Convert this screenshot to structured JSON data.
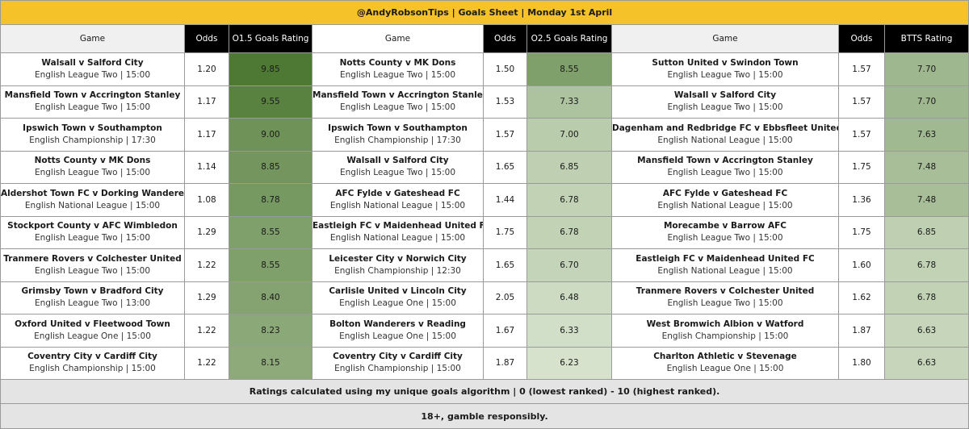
{
  "header": {
    "title": "@AndyRobsonTips | Goals Sheet | Monday 1st April"
  },
  "sections": [
    {
      "columns": [
        "Game",
        "Odds",
        "O1.5 Goals Rating"
      ],
      "rows": [
        {
          "match": "Walsall v Salford City",
          "league": "English League Two | 15:00",
          "odds": "1.20",
          "rating": "9.85"
        },
        {
          "match": "Mansfield Town v Accrington Stanley",
          "league": "English League Two | 15:00",
          "odds": "1.17",
          "rating": "9.55"
        },
        {
          "match": "Ipswich Town v Southampton",
          "league": "English Championship | 17:30",
          "odds": "1.17",
          "rating": "9.00"
        },
        {
          "match": "Notts County v MK Dons",
          "league": "English League Two | 15:00",
          "odds": "1.14",
          "rating": "8.85"
        },
        {
          "match": "Aldershot Town FC v Dorking Wanderers",
          "league": "English National League | 15:00",
          "odds": "1.08",
          "rating": "8.78"
        },
        {
          "match": "Stockport County v AFC Wimbledon",
          "league": "English League Two | 15:00",
          "odds": "1.29",
          "rating": "8.55"
        },
        {
          "match": "Tranmere Rovers v Colchester United",
          "league": "English League Two | 15:00",
          "odds": "1.22",
          "rating": "8.55"
        },
        {
          "match": "Grimsby Town v Bradford City",
          "league": "English League Two | 13:00",
          "odds": "1.29",
          "rating": "8.40"
        },
        {
          "match": "Oxford United v Fleetwood Town",
          "league": "English League One | 15:00",
          "odds": "1.22",
          "rating": "8.23"
        },
        {
          "match": "Coventry City v Cardiff City",
          "league": "English Championship | 15:00",
          "odds": "1.22",
          "rating": "8.15"
        }
      ]
    },
    {
      "columns": [
        "Game",
        "Odds",
        "O2.5 Goals Rating"
      ],
      "rows": [
        {
          "match": "Notts County v MK Dons",
          "league": "English League Two | 15:00",
          "odds": "1.50",
          "rating": "8.55"
        },
        {
          "match": "Mansfield Town v Accrington Stanley",
          "league": "English League Two | 15:00",
          "odds": "1.53",
          "rating": "7.33"
        },
        {
          "match": "Ipswich Town v Southampton",
          "league": "English Championship | 17:30",
          "odds": "1.57",
          "rating": "7.00"
        },
        {
          "match": "Walsall v Salford City",
          "league": "English League Two | 15:00",
          "odds": "1.65",
          "rating": "6.85"
        },
        {
          "match": "AFC Fylde v Gateshead FC",
          "league": "English National League | 15:00",
          "odds": "1.44",
          "rating": "6.78"
        },
        {
          "match": "Eastleigh FC v Maidenhead United FC",
          "league": "English National League | 15:00",
          "odds": "1.75",
          "rating": "6.78"
        },
        {
          "match": "Leicester City v Norwich City",
          "league": "English Championship | 12:30",
          "odds": "1.65",
          "rating": "6.70"
        },
        {
          "match": "Carlisle United v Lincoln City",
          "league": "English League One | 15:00",
          "odds": "2.05",
          "rating": "6.48"
        },
        {
          "match": "Bolton Wanderers v Reading",
          "league": "English League One | 15:00",
          "odds": "1.67",
          "rating": "6.33"
        },
        {
          "match": "Coventry City v Cardiff City",
          "league": "English Championship | 15:00",
          "odds": "1.87",
          "rating": "6.23"
        }
      ]
    },
    {
      "columns": [
        "Game",
        "Odds",
        "BTTS Rating"
      ],
      "rows": [
        {
          "match": "Sutton United v Swindon Town",
          "league": "English League Two | 15:00",
          "odds": "1.57",
          "rating": "7.70"
        },
        {
          "match": "Walsall v Salford City",
          "league": "English League Two | 15:00",
          "odds": "1.57",
          "rating": "7.70"
        },
        {
          "match": "Dagenham and Redbridge FC v Ebbsfleet United FC",
          "league": "English National League | 15:00",
          "odds": "1.57",
          "rating": "7.63"
        },
        {
          "match": "Mansfield Town v Accrington Stanley",
          "league": "English League Two | 15:00",
          "odds": "1.75",
          "rating": "7.48"
        },
        {
          "match": "AFC Fylde v Gateshead FC",
          "league": "English National League | 15:00",
          "odds": "1.36",
          "rating": "7.48"
        },
        {
          "match": "Morecambe v Barrow AFC",
          "league": "English League Two | 15:00",
          "odds": "1.75",
          "rating": "6.85"
        },
        {
          "match": "Eastleigh FC v Maidenhead United FC",
          "league": "English National League | 15:00",
          "odds": "1.60",
          "rating": "6.78"
        },
        {
          "match": "Tranmere Rovers v Colchester United",
          "league": "English League Two | 15:00",
          "odds": "1.62",
          "rating": "6.78"
        },
        {
          "match": "West Bromwich Albion v Watford",
          "league": "English Championship | 15:00",
          "odds": "1.87",
          "rating": "6.63"
        },
        {
          "match": "Charlton Athletic v Stevenage",
          "league": "English League One | 15:00",
          "odds": "1.80",
          "rating": "6.63"
        }
      ]
    }
  ],
  "notes": [
    "Ratings calculated using my unique goals algorithm | 0 (lowest ranked) - 10 (highest ranked).",
    "18+, gamble responsibly."
  ]
}
